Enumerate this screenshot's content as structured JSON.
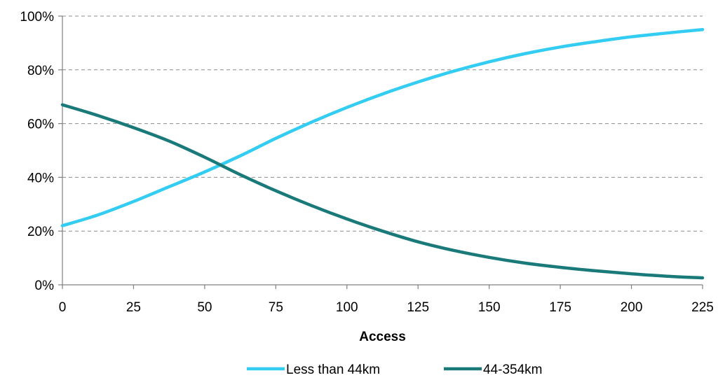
{
  "chart_data": {
    "type": "line",
    "title": "",
    "xlabel": "Access",
    "ylabel": "",
    "xlim": [
      0,
      225
    ],
    "ylim": [
      0,
      100
    ],
    "x_ticks": [
      0,
      25,
      50,
      75,
      100,
      125,
      150,
      175,
      200,
      225
    ],
    "y_ticks": [
      0,
      20,
      40,
      60,
      80,
      100
    ],
    "y_tick_labels": [
      "0%",
      "20%",
      "40%",
      "60%",
      "80%",
      "100%"
    ],
    "grid": "horizontal dashed",
    "legend_position": "bottom",
    "x": [
      0,
      12.5,
      25,
      37.5,
      50,
      62.5,
      75,
      87.5,
      100,
      112.5,
      125,
      137.5,
      150,
      162.5,
      175,
      187.5,
      200,
      212.5,
      225
    ],
    "series": [
      {
        "name": "Less than 44km",
        "color": "#33ccf2",
        "values": [
          22,
          26,
          31,
          36.5,
          42,
          48,
          54.5,
          60.5,
          66,
          71,
          75.5,
          79.5,
          83,
          86,
          88.5,
          90.5,
          92.3,
          93.7,
          95
        ]
      },
      {
        "name": "44-354km",
        "color": "#1a7a7a",
        "values": [
          67,
          63,
          58.5,
          53.5,
          47.5,
          41,
          35,
          29.5,
          24.5,
          20,
          16,
          12.8,
          10.2,
          8.1,
          6.5,
          5.2,
          4.1,
          3.2,
          2.6
        ]
      }
    ]
  }
}
